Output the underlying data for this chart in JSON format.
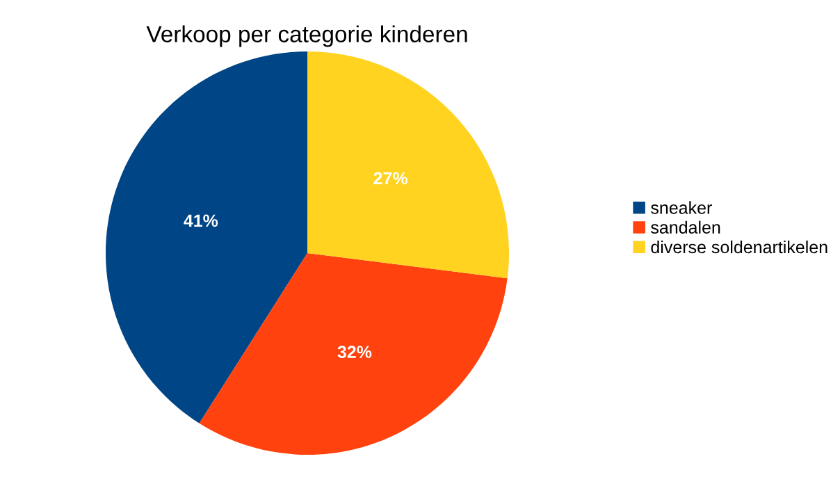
{
  "chart_data": {
    "type": "pie",
    "title": "Verkoop per categorie kinderen",
    "categories": [
      "sneaker",
      "sandalen",
      "diverse soldenartikelen"
    ],
    "values": [
      41,
      32,
      27
    ],
    "colors": [
      "#004586",
      "#ff420e",
      "#ffd320"
    ],
    "value_labels": [
      "41%",
      "32%",
      "27%"
    ],
    "legend": "right"
  }
}
